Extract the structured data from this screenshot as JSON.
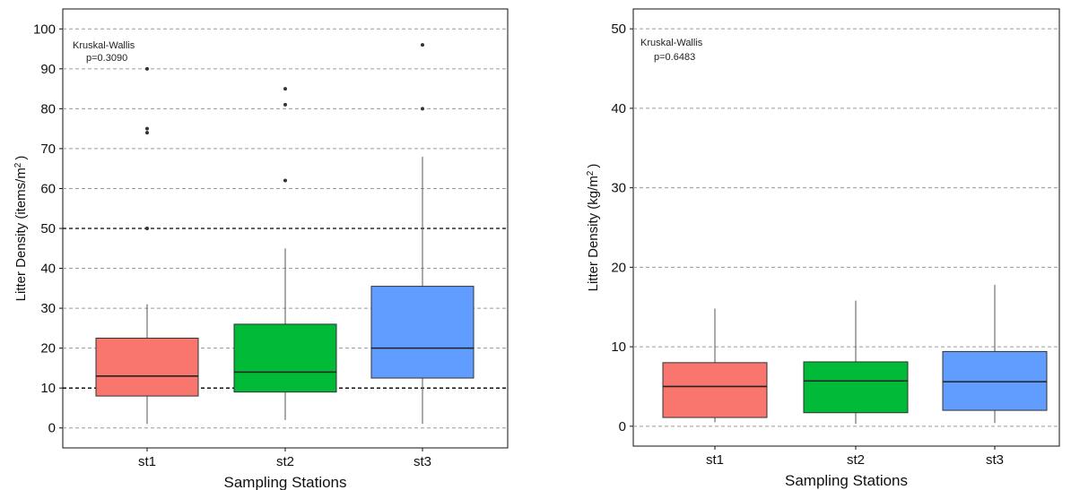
{
  "chart_data": [
    {
      "type": "boxplot",
      "title": "",
      "xlabel": "Sampling Stations",
      "ylabel": {
        "main": "Litter Density (items/m",
        "sup": "2",
        "close": ")"
      },
      "ylim": [
        -5,
        105
      ],
      "yticks": [
        0,
        10,
        20,
        30,
        40,
        50,
        60,
        70,
        80,
        90,
        100
      ],
      "grid": true,
      "annotation": [
        "Kruskal-Wallis",
        "p=0.3090"
      ],
      "reference_lines": [
        10,
        50
      ],
      "categories": [
        "st1",
        "st2",
        "st3"
      ],
      "colors": [
        "#f8766d",
        "#00ba38",
        "#619cff"
      ],
      "boxes": [
        {
          "whisker_low": 1,
          "q1": 8,
          "median": 13,
          "q3": 22.5,
          "whisker_high": 31,
          "outliers": [
            50,
            74,
            75,
            90
          ]
        },
        {
          "whisker_low": 2,
          "q1": 9,
          "median": 14,
          "q3": 26,
          "whisker_high": 45,
          "outliers": [
            62,
            81,
            85
          ]
        },
        {
          "whisker_low": 1,
          "q1": 12.5,
          "median": 20,
          "q3": 35.5,
          "whisker_high": 68,
          "outliers": [
            80,
            96
          ]
        }
      ]
    },
    {
      "type": "boxplot",
      "title": "",
      "xlabel": "Sampling Stations",
      "ylabel": {
        "main": "Litter Density (kg/m",
        "sup": "2",
        "close": ")"
      },
      "ylim": [
        -2.5,
        52.5
      ],
      "yticks": [
        0,
        10,
        20,
        30,
        40,
        50
      ],
      "grid": true,
      "annotation": [
        "Kruskal-Wallis",
        "p=0.6483"
      ],
      "reference_lines": [],
      "categories": [
        "st1",
        "st2",
        "st3"
      ],
      "colors": [
        "#f8766d",
        "#00ba38",
        "#619cff"
      ],
      "boxes": [
        {
          "whisker_low": 0.5,
          "q1": 1.1,
          "median": 5.0,
          "q3": 8.0,
          "whisker_high": 14.8,
          "outliers": []
        },
        {
          "whisker_low": 0.3,
          "q1": 1.7,
          "median": 5.7,
          "q3": 8.1,
          "whisker_high": 15.8,
          "outliers": []
        },
        {
          "whisker_low": 0.4,
          "q1": 2.0,
          "median": 5.6,
          "q3": 9.4,
          "whisker_high": 17.8,
          "outliers": []
        }
      ]
    }
  ]
}
